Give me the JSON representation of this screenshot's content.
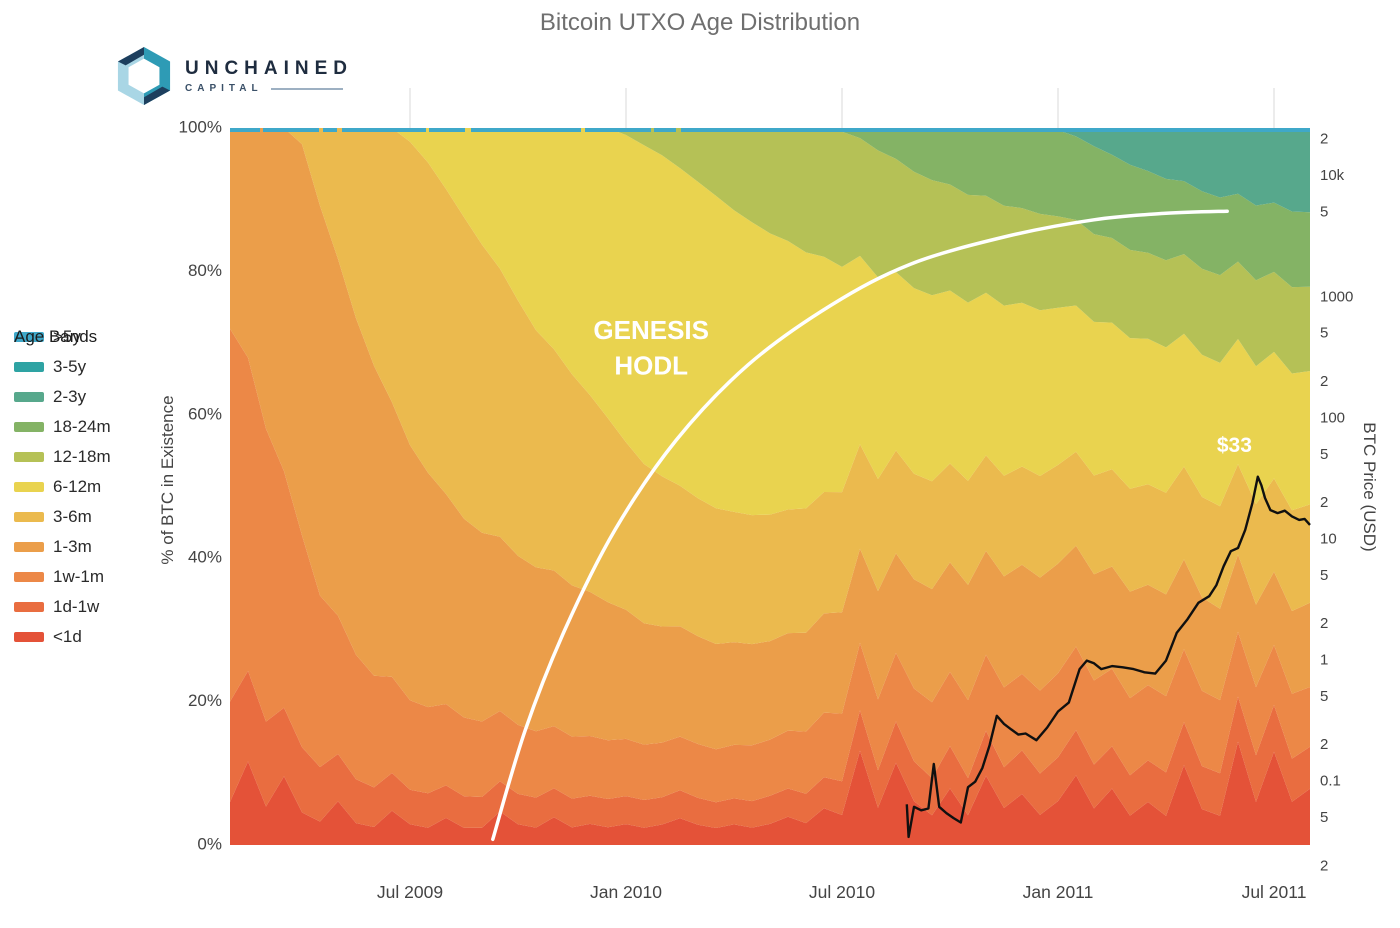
{
  "title": "Bitcoin UTXO Age Distribution",
  "logo": {
    "name": "UNCHAINED",
    "sub": "CAPITAL"
  },
  "legend": {
    "title": "Age Bands",
    "items": [
      {
        "label": ">5y",
        "color": "#3fa8c9"
      },
      {
        "label": "3-5y",
        "color": "#2ea3a3"
      },
      {
        "label": "2-3y",
        "color": "#57a88c"
      },
      {
        "label": "18-24m",
        "color": "#84b365"
      },
      {
        "label": "12-18m",
        "color": "#b5c156"
      },
      {
        "label": "6-12m",
        "color": "#e9d34f"
      },
      {
        "label": "3-6m",
        "color": "#ebba4e"
      },
      {
        "label": "1-3m",
        "color": "#eb9e4a"
      },
      {
        "label": "1w-1m",
        "color": "#ec8847"
      },
      {
        "label": "1d-1w",
        "color": "#e96d40"
      },
      {
        "label": "<1d",
        "color": "#e45238"
      }
    ]
  },
  "annotations": {
    "genesis_line1": "GENESIS",
    "genesis_line2": "HODL",
    "price_peak_label": "$33",
    "genesis_arc": [
      [
        7.3,
        0.8
      ],
      [
        8.2,
        16
      ],
      [
        9.3,
        30
      ],
      [
        10.7,
        44
      ],
      [
        12.4,
        56.5
      ],
      [
        14.4,
        67
      ],
      [
        16.7,
        75.3
      ],
      [
        18.9,
        81
      ],
      [
        21.5,
        84.8
      ],
      [
        24,
        87.2
      ],
      [
        26,
        88.1
      ],
      [
        27.7,
        88.4
      ]
    ]
  },
  "price_axis": {
    "title": "BTC Price (USD)",
    "top": 25000,
    "bottom": 0.03,
    "line_color": "#101010",
    "ticks": [
      {
        "v": 20000,
        "label": "2"
      },
      {
        "v": 10000,
        "label": "10k"
      },
      {
        "v": 5000,
        "label": "5"
      },
      {
        "v": 1000,
        "label": "1000"
      },
      {
        "v": 500,
        "label": "5"
      },
      {
        "v": 200,
        "label": "2"
      },
      {
        "v": 100,
        "label": "100"
      },
      {
        "v": 50,
        "label": "5"
      },
      {
        "v": 20,
        "label": "2"
      },
      {
        "v": 10,
        "label": "10"
      },
      {
        "v": 5,
        "label": "5"
      },
      {
        "v": 2,
        "label": "2"
      },
      {
        "v": 1,
        "label": "1"
      },
      {
        "v": 0.5,
        "label": "5"
      },
      {
        "v": 0.2,
        "label": "2"
      },
      {
        "v": 0.1,
        "label": "0.1"
      },
      {
        "v": 0.05,
        "label": "5"
      },
      {
        "v": 0.02,
        "label": "2"
      }
    ],
    "series": [
      [
        18.8,
        0.065
      ],
      [
        18.85,
        0.035
      ],
      [
        19.0,
        0.062
      ],
      [
        19.2,
        0.058
      ],
      [
        19.4,
        0.06
      ],
      [
        19.55,
        0.14
      ],
      [
        19.7,
        0.062
      ],
      [
        19.9,
        0.055
      ],
      [
        20.1,
        0.05
      ],
      [
        20.3,
        0.046
      ],
      [
        20.5,
        0.09
      ],
      [
        20.7,
        0.1
      ],
      [
        20.9,
        0.13
      ],
      [
        21.1,
        0.2
      ],
      [
        21.3,
        0.35
      ],
      [
        21.5,
        0.3
      ],
      [
        21.7,
        0.27
      ],
      [
        21.9,
        0.245
      ],
      [
        22.1,
        0.25
      ],
      [
        22.4,
        0.22
      ],
      [
        22.7,
        0.28
      ],
      [
        23.0,
        0.38
      ],
      [
        23.3,
        0.45
      ],
      [
        23.6,
        0.85
      ],
      [
        23.8,
        1.0
      ],
      [
        24.0,
        0.95
      ],
      [
        24.2,
        0.85
      ],
      [
        24.5,
        0.9
      ],
      [
        24.8,
        0.88
      ],
      [
        25.1,
        0.85
      ],
      [
        25.4,
        0.8
      ],
      [
        25.7,
        0.78
      ],
      [
        26.0,
        1.0
      ],
      [
        26.3,
        1.7
      ],
      [
        26.6,
        2.2
      ],
      [
        26.9,
        3.0
      ],
      [
        27.2,
        3.4
      ],
      [
        27.4,
        4.2
      ],
      [
        27.6,
        6.0
      ],
      [
        27.8,
        8.0
      ],
      [
        28.0,
        8.5
      ],
      [
        28.2,
        12
      ],
      [
        28.4,
        20
      ],
      [
        28.55,
        33
      ],
      [
        28.65,
        28
      ],
      [
        28.75,
        22
      ],
      [
        28.9,
        17.5
      ],
      [
        29.1,
        16.5
      ],
      [
        29.3,
        17.3
      ],
      [
        29.5,
        15.5
      ],
      [
        29.7,
        14.5
      ],
      [
        29.85,
        14.8
      ],
      [
        30.0,
        13.2
      ]
    ]
  },
  "chart_data": {
    "type": "area",
    "title": "Bitcoin UTXO Age Distribution",
    "xlabel": "",
    "ylabel": "% of BTC in Existence",
    "stacked_percent": true,
    "legend_position": "left",
    "x_unit": "months since 2009-02",
    "x_range": [
      0,
      30
    ],
    "x_step": 0.5,
    "x_ticks": [
      {
        "t": 5,
        "label": "Jul 2009"
      },
      {
        "t": 11,
        "label": "Jan 2010"
      },
      {
        "t": 17,
        "label": "Jul 2010"
      },
      {
        "t": 23,
        "label": "Jan 2011"
      },
      {
        "t": 29,
        "label": "Jul 2011"
      }
    ],
    "y_ticks_left": [
      {
        "pct": 0,
        "label": "0%"
      },
      {
        "pct": 20,
        "label": "20%"
      },
      {
        "pct": 40,
        "label": "40%"
      },
      {
        "pct": 60,
        "label": "60%"
      },
      {
        "pct": 80,
        "label": "80%"
      },
      {
        "pct": 100,
        "label": "100%"
      }
    ],
    "series": [
      {
        "name": "<1d",
        "color": "#e45238",
        "values": [
          6,
          12,
          5,
          9,
          4,
          3,
          6,
          3,
          2.5,
          5,
          3,
          2.5,
          4,
          2.5,
          2.5,
          5,
          3,
          2.5,
          4,
          2.5,
          3,
          2.5,
          3,
          2.5,
          3,
          4,
          3,
          2.5,
          3,
          2.5,
          3,
          4,
          3,
          5,
          4,
          14,
          5,
          12,
          6,
          4,
          8,
          4,
          10,
          5,
          7,
          4,
          6,
          10,
          5,
          8,
          4,
          6,
          4,
          12,
          5,
          4,
          16,
          6,
          14,
          6,
          8
        ]
      },
      {
        "name": "1d-1w",
        "color": "#e96d40",
        "values": [
          14,
          13,
          11,
          9,
          8,
          7,
          6.5,
          6,
          5.5,
          5.5,
          5,
          5,
          4.8,
          4.6,
          4.5,
          4.5,
          4.4,
          4.3,
          4.2,
          4.1,
          4,
          4,
          4,
          4,
          4,
          4.2,
          4,
          3.8,
          3.8,
          3.8,
          4,
          4,
          4,
          4.2,
          4.5,
          6,
          5,
          6,
          5.5,
          5,
          6,
          5,
          6.5,
          5.5,
          6,
          5.5,
          6,
          6.5,
          6,
          6,
          5.5,
          5.8,
          6,
          6.5,
          6,
          5.8,
          7,
          6.5,
          7,
          6,
          6
        ]
      },
      {
        "name": "1w-1m",
        "color": "#ec8847",
        "values": [
          52,
          45,
          38,
          31,
          26,
          22,
          19,
          17,
          15.5,
          14,
          13,
          12.5,
          12,
          11.5,
          11,
          10.5,
          10,
          9.5,
          9,
          8.8,
          8.5,
          8.3,
          8.2,
          8,
          8,
          8,
          8,
          7.8,
          7.8,
          8,
          8,
          8.2,
          8.5,
          8.8,
          9,
          10,
          9.5,
          10,
          10,
          10.2,
          10.5,
          10.5,
          11,
          10.8,
          10.5,
          11,
          11.5,
          12,
          11.5,
          11,
          10.5,
          10.5,
          10.5,
          11,
          10.5,
          10,
          10,
          9.5,
          9,
          9,
          8.5
        ]
      },
      {
        "name": "1-3m",
        "color": "#eb9e4a",
        "values": [
          28,
          33,
          39,
          45,
          48,
          50,
          49,
          46,
          43,
          40,
          37,
          34,
          31,
          29,
          27.5,
          26,
          24.5,
          23.5,
          22.5,
          21.5,
          20.5,
          19.5,
          18.5,
          17.5,
          17,
          16.5,
          16,
          15.5,
          15,
          14.5,
          14,
          13.8,
          13.5,
          13.5,
          13.5,
          14,
          14.5,
          14.5,
          15,
          15.2,
          15.5,
          15.5,
          15,
          15,
          15,
          15,
          15,
          14.5,
          14.5,
          14.5,
          14.5,
          14,
          14,
          13.5,
          13,
          12.5,
          12,
          11.5,
          11,
          11.5,
          12
        ]
      },
      {
        "name": "3-6m",
        "color": "#ebba4e",
        "values": [
          0,
          0,
          0,
          0,
          2,
          10,
          18,
          26,
          33,
          40,
          44,
          45,
          45,
          44,
          42,
          40,
          37,
          34,
          32,
          30,
          28,
          26,
          24,
          23,
          22,
          21,
          20.5,
          20,
          19,
          18.5,
          18,
          17.5,
          17,
          16.5,
          16,
          15.5,
          15,
          15,
          14.5,
          14.5,
          14,
          14,
          13.8,
          13.6,
          13.5,
          13.5,
          13.5,
          13.5,
          13.5,
          13.8,
          14,
          14,
          14,
          14,
          14,
          14,
          14,
          14,
          14,
          14,
          14
        ]
      },
      {
        "name": "6-12m",
        "color": "#e9d34f",
        "values": [
          0,
          0,
          0,
          0,
          0,
          0,
          0,
          0,
          0,
          0,
          2,
          5,
          9,
          13,
          17,
          21,
          25,
          29,
          32,
          35,
          38,
          41,
          44,
          46,
          47,
          47.5,
          47,
          46,
          44,
          42,
          40,
          38,
          35,
          32,
          30,
          28,
          27,
          26,
          25.5,
          25,
          24.5,
          24,
          23.5,
          23,
          22.5,
          22,
          21.5,
          21,
          21,
          20.8,
          20.5,
          20.3,
          20,
          20,
          19.8,
          19.6,
          19.4,
          19.2,
          19,
          19,
          19
        ]
      },
      {
        "name": "12-18m",
        "color": "#b5c156",
        "values": [
          0,
          0,
          0,
          0,
          0,
          0,
          0,
          0,
          0,
          0,
          0,
          0,
          0,
          0,
          0,
          0,
          0,
          0,
          0,
          0,
          0,
          0,
          1,
          2.5,
          4,
          6,
          8,
          10,
          12,
          13.5,
          15,
          16,
          17,
          17.5,
          18,
          17.5,
          17,
          16.5,
          16,
          15.5,
          15,
          14.5,
          14,
          13.5,
          13,
          12.8,
          12.5,
          12.3,
          12,
          12,
          12,
          12,
          12,
          12,
          12,
          12,
          12,
          12,
          12,
          12,
          12
        ]
      },
      {
        "name": "18-24m",
        "color": "#84b365",
        "values": [
          0,
          0,
          0,
          0,
          0,
          0,
          0,
          0,
          0,
          0,
          0,
          0,
          0,
          0,
          0,
          0,
          0,
          0,
          0,
          0,
          0,
          0,
          0,
          0,
          0,
          0,
          0,
          0,
          0,
          0,
          0,
          0,
          0,
          0,
          0.5,
          1.5,
          3,
          4.5,
          6,
          7,
          8,
          9,
          9.8,
          10.5,
          11,
          11.4,
          11.8,
          12,
          12,
          11.8,
          11.6,
          11.4,
          11.2,
          11,
          10.8,
          10.6,
          10.5,
          10.4,
          10.4,
          10.5,
          10.6
        ]
      },
      {
        "name": "2-3y",
        "color": "#57a88c",
        "values": [
          0,
          0,
          0,
          0,
          0,
          0,
          0,
          0,
          0,
          0,
          0,
          0,
          0,
          0,
          0,
          0,
          0,
          0,
          0,
          0,
          0,
          0,
          0,
          0,
          0,
          0,
          0,
          0,
          0,
          0,
          0,
          0,
          0,
          0,
          0,
          0,
          0,
          0,
          0,
          0,
          0,
          0,
          0,
          0,
          0,
          0,
          0.3,
          1.2,
          2.5,
          3.8,
          5,
          6,
          7,
          8,
          8.8,
          9.5,
          10.2,
          10.8,
          11.2,
          11.6,
          12
        ]
      },
      {
        "name": "3-5y",
        "color": "#2ea3a3",
        "values": []
      },
      {
        "name": ">5y",
        "color": "#3fa8c9",
        "values": []
      }
    ]
  }
}
